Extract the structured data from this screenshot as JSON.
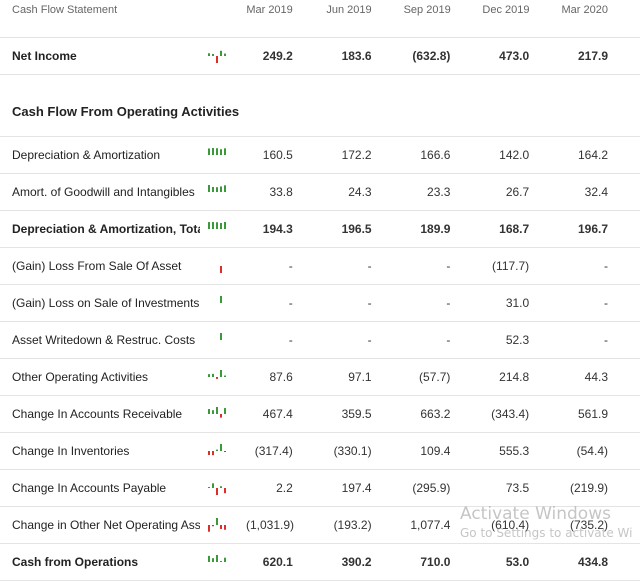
{
  "header": {
    "title": "Cash Flow Statement",
    "periods": [
      "Mar 2019",
      "Jun 2019",
      "Sep 2019",
      "Dec 2019",
      "Mar 2020"
    ]
  },
  "rows": [
    {
      "label": "Net Income",
      "values": [
        "249.2",
        "183.6",
        "(632.8)",
        "473.0",
        "217.9"
      ],
      "bold": true,
      "spark": "net-income",
      "spark_color": "green"
    },
    {
      "label": "Cash Flow From Operating Activities",
      "section": true
    },
    {
      "label": "Depreciation & Amortization",
      "values": [
        "160.5",
        "172.2",
        "166.6",
        "142.0",
        "164.2"
      ],
      "spark": "d-and-a",
      "spark_color": "green"
    },
    {
      "label": "Amort. of Goodwill and Intangibles",
      "values": [
        "33.8",
        "24.3",
        "23.3",
        "26.7",
        "32.4"
      ],
      "spark": "goodwill",
      "spark_color": "green"
    },
    {
      "label": "Depreciation & Amortization, Total",
      "values": [
        "194.3",
        "196.5",
        "189.9",
        "168.7",
        "196.7"
      ],
      "bold": true,
      "spark": "d-and-a-total",
      "spark_color": "green"
    },
    {
      "label": "(Gain) Loss From Sale Of Asset",
      "values": [
        "-",
        "-",
        "-",
        "(117.7)",
        "-"
      ],
      "spark": "gain-loss-asset",
      "spark_color": "red"
    },
    {
      "label": "(Gain) Loss on Sale of Investments",
      "values": [
        "-",
        "-",
        "-",
        "31.0",
        "-"
      ],
      "spark": "gain-loss-investments",
      "spark_color": "green"
    },
    {
      "label": "Asset Writedown & Restruc. Costs",
      "values": [
        "-",
        "-",
        "-",
        "52.3",
        "-"
      ],
      "spark": "asset-writedown",
      "spark_color": "green"
    },
    {
      "label": "Other Operating Activities",
      "values": [
        "87.6",
        "97.1",
        "(57.7)",
        "214.8",
        "44.3"
      ],
      "spark": "other-operating",
      "spark_color": "mixed"
    },
    {
      "label": "Change In Accounts Receivable",
      "values": [
        "467.4",
        "359.5",
        "663.2",
        "(343.4)",
        "561.9"
      ],
      "spark": "accounts-receivable",
      "spark_color": "mixed"
    },
    {
      "label": "Change In Inventories",
      "values": [
        "(317.4)",
        "(330.1)",
        "109.4",
        "555.3",
        "(54.4)"
      ],
      "spark": "inventories",
      "spark_color": "mixed"
    },
    {
      "label": "Change In Accounts Payable",
      "values": [
        "2.2",
        "197.4",
        "(295.9)",
        "73.5",
        "(219.9)"
      ],
      "spark": "accounts-payable",
      "spark_color": "mixed"
    },
    {
      "label": "Change in Other Net Operating Assets",
      "values": [
        "(1,031.9)",
        "(193.2)",
        "1,077.4",
        "(610.4)",
        "(735.2)"
      ],
      "spark": "other-net-operating",
      "spark_color": "mixed"
    },
    {
      "label": "Cash from Operations",
      "values": [
        "620.1",
        "390.2",
        "710.0",
        "53.0",
        "434.8"
      ],
      "bold": true,
      "spark": "cash-from-operations",
      "spark_color": "green"
    }
  ],
  "colors": {
    "positive": "#3a9a3a",
    "negative": "#d9302a",
    "grid": "#e4e4e4"
  },
  "watermark": {
    "title": "Activate Windows",
    "subtitle": "Go to Settings to activate Wi"
  }
}
